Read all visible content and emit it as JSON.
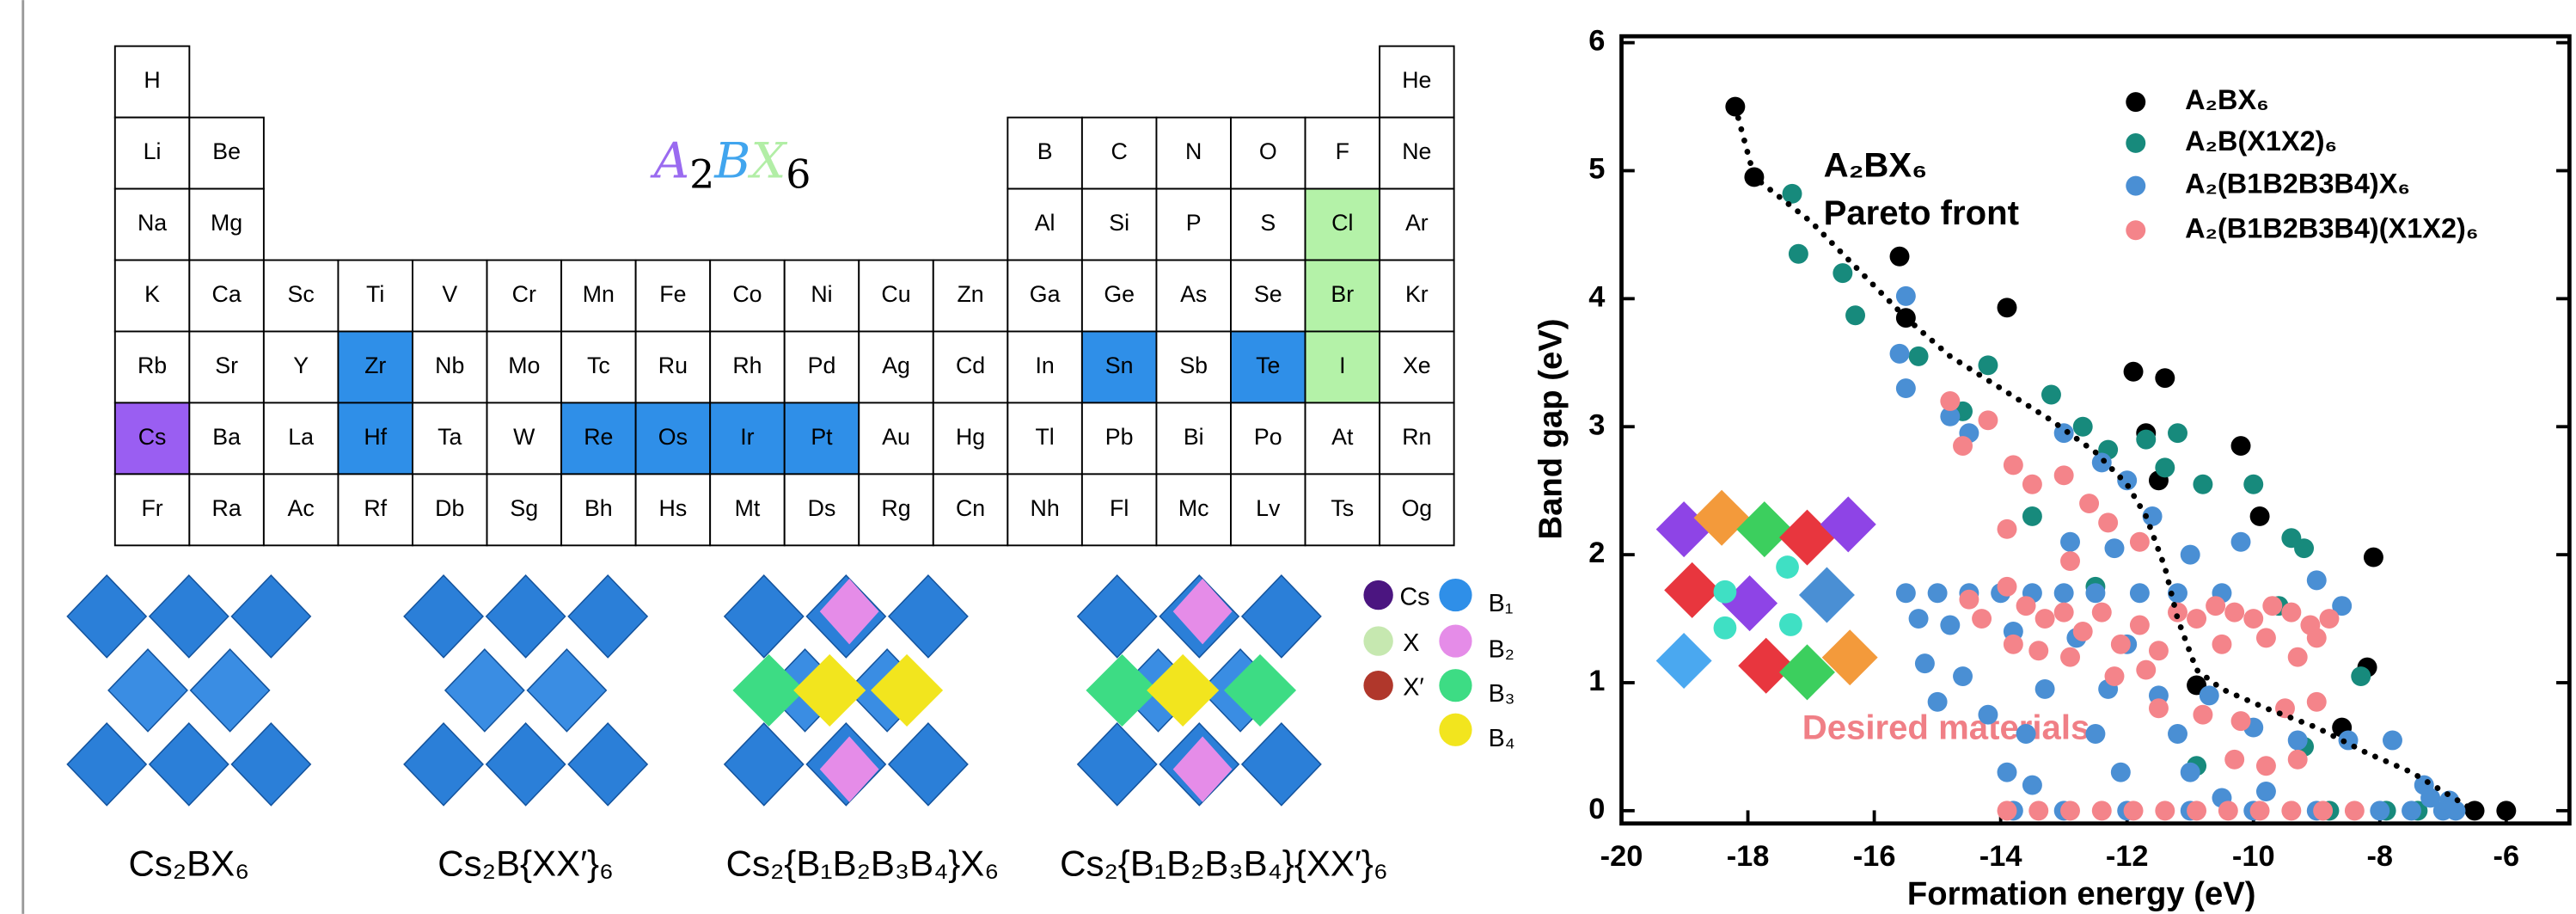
{
  "table": {
    "title": [
      {
        "text": "A",
        "color": "#9a6af0"
      },
      {
        "text": "2",
        "sub": true
      },
      {
        "text": "B",
        "color": "#41a5ee"
      },
      {
        "text": "X",
        "color": "#b2eea6"
      },
      {
        "text": "6",
        "sub": true
      }
    ],
    "rows": [
      [
        "H",
        null,
        null,
        null,
        null,
        null,
        null,
        null,
        null,
        null,
        null,
        null,
        null,
        null,
        null,
        null,
        null,
        "He"
      ],
      [
        "Li",
        "Be",
        null,
        null,
        null,
        null,
        null,
        null,
        null,
        null,
        null,
        null,
        "B",
        "C",
        "N",
        "O",
        "F",
        "Ne"
      ],
      [
        "Na",
        "Mg",
        null,
        null,
        null,
        null,
        null,
        null,
        null,
        null,
        null,
        null,
        "Al",
        "Si",
        "P",
        "S",
        "Cl",
        "Ar"
      ],
      [
        "K",
        "Ca",
        "Sc",
        "Ti",
        "V",
        "Cr",
        "Mn",
        "Fe",
        "Co",
        "Ni",
        "Cu",
        "Zn",
        "Ga",
        "Ge",
        "As",
        "Se",
        "Br",
        "Kr"
      ],
      [
        "Rb",
        "Sr",
        "Y",
        "Zr",
        "Nb",
        "Mo",
        "Tc",
        "Ru",
        "Rh",
        "Pd",
        "Ag",
        "Cd",
        "In",
        "Sn",
        "Sb",
        "Te",
        "I",
        "Xe"
      ],
      [
        "Cs",
        "Ba",
        "La",
        "Hf",
        "Ta",
        "W",
        "Re",
        "Os",
        "Ir",
        "Pt",
        "Au",
        "Hg",
        "Tl",
        "Pb",
        "Bi",
        "Po",
        "At",
        "Rn"
      ],
      [
        "Fr",
        "Ra",
        "Ac",
        "Rf",
        "Db",
        "Sg",
        "Bh",
        "Hs",
        "Mt",
        "Ds",
        "Rg",
        "Cn",
        "Nh",
        "Fl",
        "Mc",
        "Lv",
        "Ts",
        "Og"
      ]
    ],
    "highlight": {
      "Cs": "A",
      "Zr": "B",
      "Hf": "B",
      "Re": "B",
      "Os": "B",
      "Ir": "B",
      "Pt": "B",
      "Sn": "B",
      "Te": "B",
      "Cl": "X",
      "Br": "X",
      "I": "X"
    },
    "role_colors": {
      "A": "#9a5ef2",
      "B": "#2f8fe8",
      "X": "#b4f2a8"
    }
  },
  "structures": {
    "labels": [
      "Cs₂BX₆",
      "Cs₂B{XX′}₆",
      "Cs₂{B₁B₂B₃B₄}X₆",
      "Cs₂{B₁B₂B₃B₄}{XX′}₆"
    ],
    "atom_legend": [
      "Cs",
      "X",
      "X′",
      "B₁",
      "B₂",
      "B₃",
      "B₄"
    ]
  },
  "chart_data": {
    "type": "scatter",
    "xlabel": "Formation energy (eV)",
    "ylabel": "Band gap (eV)",
    "xlim": [
      -20,
      -5
    ],
    "ylim": [
      -0.1,
      6.05
    ],
    "xticks": [
      -20,
      -18,
      -16,
      -14,
      -12,
      -10,
      -8,
      -6
    ],
    "yticks": [
      0,
      1,
      2,
      3,
      4,
      5,
      6
    ],
    "annotations": [
      "A₂BX₆",
      "Pareto front",
      "Desired materials"
    ],
    "pareto_front": {
      "x": [
        -18.2,
        -17.9,
        -17.0,
        -16.2,
        -15.5,
        -14.8,
        -14.0,
        -13.2,
        -12.5,
        -12.0,
        -11.7,
        -11.4,
        -11.2,
        -10.9,
        -10.5,
        -9.8,
        -9.0,
        -8.2,
        -7.5,
        -7.0,
        -6.5
      ],
      "values": [
        5.5,
        4.95,
        4.6,
        4.2,
        3.85,
        3.55,
        3.3,
        3.05,
        2.8,
        2.55,
        2.3,
        1.9,
        1.5,
        1.1,
        0.95,
        0.8,
        0.65,
        0.45,
        0.3,
        0.15,
        0
      ]
    },
    "series": [
      {
        "name": "A₂BX₆",
        "color": "#000000",
        "x": [
          -18.2,
          -17.9,
          -15.6,
          -15.5,
          -13.9,
          -11.9,
          -11.4,
          -11.5,
          -11.7,
          -10.2,
          -9.9,
          -8.1,
          -10.9,
          -8.2,
          -8.6,
          -6.5,
          -6.0
        ],
        "values": [
          5.5,
          4.95,
          4.33,
          3.85,
          3.93,
          3.43,
          3.38,
          2.58,
          2.95,
          2.85,
          2.3,
          1.98,
          0.98,
          1.12,
          0.65,
          0,
          0
        ]
      },
      {
        "name": "A₂B(X1X2)₆",
        "color": "#178a7c",
        "x": [
          -17.3,
          -17.2,
          -16.5,
          -16.3,
          -15.3,
          -14.2,
          -14.6,
          -13.2,
          -12.7,
          -12.3,
          -11.7,
          -11.2,
          -11.4,
          -10.8,
          -10.0,
          -9.4,
          -9.2,
          -9.6,
          -8.3,
          -9.2,
          -12.5,
          -10.9,
          -8.8,
          -7.9,
          -7.4,
          -13.5
        ],
        "values": [
          4.82,
          4.35,
          4.2,
          3.87,
          3.55,
          3.48,
          3.12,
          3.25,
          3.0,
          2.82,
          2.9,
          2.95,
          2.68,
          2.55,
          2.55,
          2.13,
          2.05,
          1.6,
          1.05,
          0.5,
          1.75,
          0.35,
          0,
          0,
          0,
          2.3
        ]
      },
      {
        "name": "A₂(B1B2B3B4)X₆",
        "color": "#4a8fd4",
        "x": [
          -15.5,
          -15.6,
          -15.5,
          -14.8,
          -14.5,
          -13.0,
          -12.4,
          -12.0,
          -12.9,
          -12.2,
          -11.6,
          -11.0,
          -10.2,
          -15.5,
          -15.0,
          -14.5,
          -14.0,
          -13.5,
          -13.0,
          -12.5,
          -11.8,
          -11.2,
          -10.5,
          -15.3,
          -14.8,
          -13.8,
          -12.8,
          -12.0,
          -15.2,
          -14.6,
          -13.3,
          -12.3,
          -11.5,
          -10.7,
          -15.0,
          -14.2,
          -13.6,
          -12.5,
          -11.2,
          -10.0,
          -9.3,
          -8.5,
          -7.8,
          -7.3,
          -13.9,
          -13.5,
          -12.1,
          -11.0,
          -10.5,
          -9.8,
          -13.8,
          -13.0,
          -12.0,
          -11.0,
          -10.0,
          -9.0,
          -8.0,
          -7.5,
          -7.0,
          -6.8,
          -7.2,
          -6.9,
          -9.0,
          -8.6
        ],
        "values": [
          4.02,
          3.57,
          3.3,
          3.08,
          2.95,
          2.95,
          2.72,
          2.58,
          2.1,
          2.05,
          2.3,
          2.0,
          2.1,
          1.7,
          1.7,
          1.7,
          1.7,
          1.7,
          1.7,
          1.7,
          1.7,
          1.7,
          1.7,
          1.5,
          1.45,
          1.4,
          1.35,
          1.3,
          1.15,
          1.05,
          0.95,
          0.95,
          0.9,
          0.9,
          0.85,
          0.75,
          0.6,
          0.6,
          0.6,
          0.65,
          0.55,
          0.55,
          0.55,
          0.2,
          0.3,
          0.2,
          0.3,
          0.3,
          0.1,
          0.15,
          0,
          0,
          0,
          0,
          0,
          0,
          0,
          0,
          0,
          0,
          0.1,
          0.08,
          1.8,
          1.6
        ]
      },
      {
        "name": "A₂(B1B2B3B4)(X1X2)₆",
        "color": "#f4848a",
        "x": [
          -14.8,
          -14.6,
          -14.2,
          -13.8,
          -13.5,
          -13.0,
          -12.6,
          -12.3,
          -11.8,
          -13.9,
          -13.6,
          -13.3,
          -13.0,
          -12.7,
          -12.4,
          -12.1,
          -11.8,
          -11.5,
          -11.2,
          -10.9,
          -10.6,
          -10.3,
          -10.0,
          -9.7,
          -9.4,
          -9.1,
          -8.8,
          -14.5,
          -13.8,
          -13.4,
          -12.9,
          -12.2,
          -11.7,
          -10.5,
          -9.8,
          -9.3,
          -9.0,
          -13.9,
          -11.5,
          -10.8,
          -10.2,
          -9.5,
          -9.0,
          -10.3,
          -9.8,
          -9.3,
          -13.9,
          -13.4,
          -12.9,
          -12.4,
          -11.9,
          -11.4,
          -10.9,
          -10.4,
          -9.9,
          -9.4,
          -8.9,
          -8.4,
          -14.3,
          -12.9
        ],
        "values": [
          3.2,
          2.85,
          3.05,
          2.7,
          2.55,
          2.62,
          2.4,
          2.25,
          2.1,
          1.75,
          1.6,
          1.5,
          1.55,
          1.4,
          1.55,
          1.3,
          1.45,
          1.25,
          1.55,
          1.5,
          1.6,
          1.55,
          1.5,
          1.6,
          1.55,
          1.45,
          1.5,
          1.65,
          1.3,
          1.25,
          1.2,
          1.05,
          1.1,
          1.3,
          1.35,
          1.2,
          1.35,
          2.2,
          0.8,
          0.75,
          0.7,
          0.8,
          0.85,
          0.4,
          0.35,
          0.4,
          0,
          0,
          0,
          0,
          0,
          0,
          0,
          0,
          0,
          0,
          0,
          0,
          1.5,
          1.95
        ]
      }
    ]
  }
}
